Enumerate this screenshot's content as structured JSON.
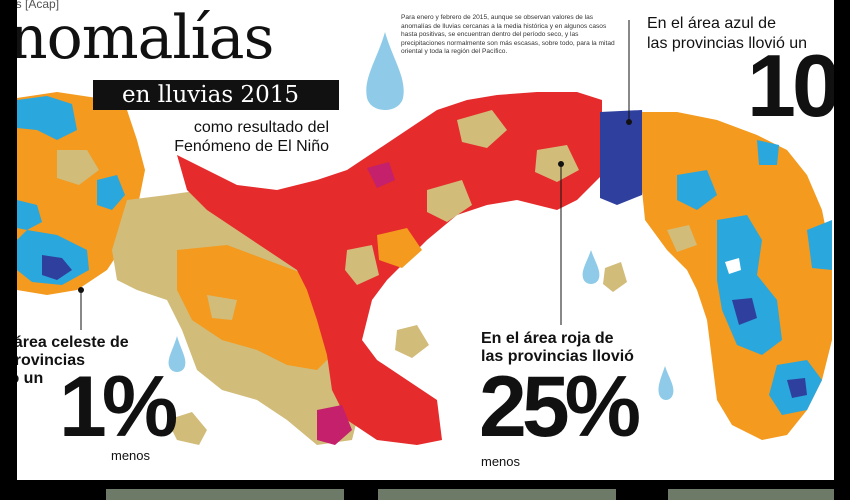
{
  "header": {
    "credit": "os [Acap]",
    "title": "nomalías",
    "subtitle_band": "en lluvias 2015",
    "subtitle": "como resultado del Fenómeno de El Niño"
  },
  "intro_text": "Para enero y febrero de 2015, aunque se observan valores de las anomalías de lluvias cercanas a la media histórica y en algunos casos hasta positivas, se encuentran dentro del período seco, y las precipitaciones normalmente son más escasas, sobre todo, para la mitad oriental y toda la región del Pacífico.",
  "callouts": {
    "blue": {
      "caption_line1": "En el área azul de",
      "caption_line2": "las provincias llovió un",
      "value": "10"
    },
    "celeste": {
      "caption_line1": "l área celeste de",
      "caption_line2": "provincias",
      "caption_line3": "ió un",
      "value": "1%",
      "unit_note": "menos"
    },
    "red": {
      "caption_line1": "En el área roja de",
      "caption_line2": "las provincias llovió",
      "value": "25%",
      "unit_note": "menos"
    }
  },
  "map_colors": {
    "tan": "#d2bc7a",
    "orange": "#f39a1f",
    "red": "#e52b2b",
    "magenta": "#c4206b",
    "cyan": "#2aa7dc",
    "navy": "#2f3f9e",
    "water_drop": "#8fcbe8"
  }
}
